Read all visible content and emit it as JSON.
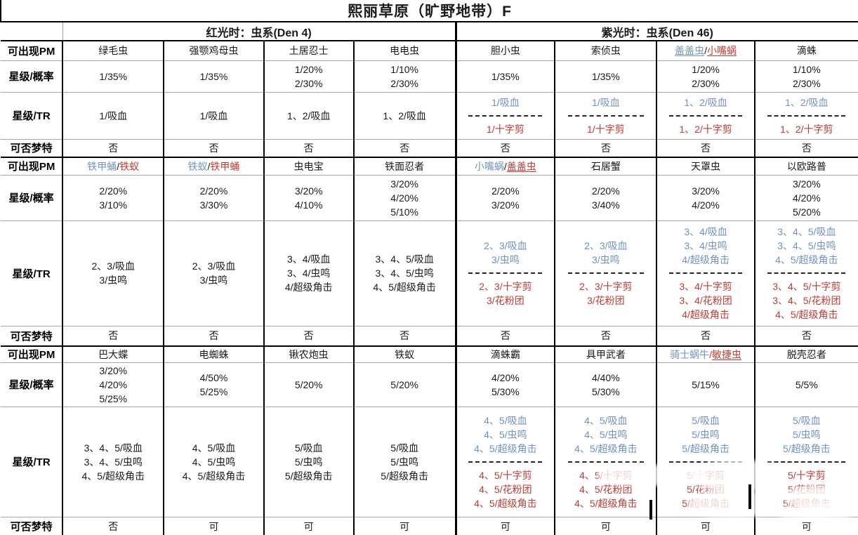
{
  "title": "熙丽草原（旷野地带）F",
  "colors": {
    "blue_text": "#6f93c4",
    "red_text": "#c33b32"
  },
  "groups": [
    {
      "label": "红光时：虫系(Den 4)"
    },
    {
      "label": "紫光时：虫系(Den 46)"
    }
  ],
  "row_labels": {
    "pm": "可出现PM",
    "prob": "星级/概率",
    "tr": "星级/TR",
    "dream": "可否梦特"
  },
  "blocks": [
    {
      "cols": [
        {
          "name": [
            {
              "t": "绿毛虫",
              "c": "k"
            }
          ],
          "prob": [
            "1/35%"
          ],
          "tr": {
            "black": [
              "1/吸血"
            ]
          },
          "dream": "否"
        },
        {
          "name": [
            {
              "t": "强颚鸡母虫",
              "c": "k"
            }
          ],
          "prob": [
            "1/35%"
          ],
          "tr": {
            "black": [
              "1/吸血"
            ]
          },
          "dream": "否"
        },
        {
          "name": [
            {
              "t": "土居忍士",
              "c": "k"
            }
          ],
          "prob": [
            "1/20%",
            "2/30%"
          ],
          "tr": {
            "black": [
              "1、2/吸血"
            ]
          },
          "dream": "否"
        },
        {
          "name": [
            {
              "t": "电电虫",
              "c": "k"
            }
          ],
          "prob": [
            "1/10%",
            "2/30%"
          ],
          "tr": {
            "black": [
              "1、2/吸血"
            ]
          },
          "dream": "否"
        },
        {
          "name": [
            {
              "t": "胆小虫",
              "c": "k"
            }
          ],
          "prob": [
            "1/35%"
          ],
          "tr": {
            "blue": [
              "1/吸血"
            ],
            "red": [
              "1/十字剪"
            ]
          },
          "dream": "否"
        },
        {
          "name": [
            {
              "t": "索侦虫",
              "c": "k"
            }
          ],
          "prob": [
            "1/35%"
          ],
          "tr": {
            "blue": [
              "1/吸血"
            ],
            "red": [
              "1/十字剪"
            ]
          },
          "dream": "否"
        },
        {
          "name": [
            {
              "t": "盖盖虫",
              "c": "b",
              "u": true
            },
            {
              "t": "/",
              "c": "k"
            },
            {
              "t": "小嘴蜗",
              "c": "r",
              "u": true
            }
          ],
          "prob": [
            "1/20%",
            "2/30%"
          ],
          "tr": {
            "blue": [
              "1、2/吸血"
            ],
            "red": [
              "1、2/十字剪"
            ]
          },
          "dream": "否"
        },
        {
          "name": [
            {
              "t": "滴蛛",
              "c": "k"
            }
          ],
          "prob": [
            "1/10%",
            "2/30%"
          ],
          "tr": {
            "blue": [
              "1、2/吸血"
            ],
            "red": [
              "1、2/十字剪"
            ]
          },
          "dream": "否"
        }
      ]
    },
    {
      "cols": [
        {
          "name": [
            {
              "t": "铁甲蛹",
              "c": "b"
            },
            {
              "t": "/",
              "c": "k"
            },
            {
              "t": "铁蚁",
              "c": "r"
            }
          ],
          "prob": [
            "2/20%",
            "3/10%"
          ],
          "tr": {
            "black": [
              "2、3/吸血",
              "3/虫鸣"
            ]
          },
          "dream": "否"
        },
        {
          "name": [
            {
              "t": "铁蚁",
              "c": "b"
            },
            {
              "t": "/",
              "c": "k"
            },
            {
              "t": "铁甲蛹",
              "c": "r"
            }
          ],
          "prob": [
            "2/20%",
            "3/30%"
          ],
          "tr": {
            "black": [
              "2、3/吸血",
              "3/虫鸣"
            ]
          },
          "dream": "否"
        },
        {
          "name": [
            {
              "t": "虫电宝",
              "c": "k"
            }
          ],
          "prob": [
            "3/20%",
            "4/10%"
          ],
          "tr": {
            "black": [
              "3、4/吸血",
              "3、4/虫鸣",
              "4/超级角击"
            ]
          },
          "dream": "否"
        },
        {
          "name": [
            {
              "t": "铁面忍者",
              "c": "k"
            }
          ],
          "prob": [
            "3/20%",
            "4/20%",
            "5/10%"
          ],
          "tr": {
            "black": [
              "3、4、5/吸血",
              "3、4、5/虫鸣",
              "4、5/超级角击"
            ]
          },
          "dream": "否"
        },
        {
          "name": [
            {
              "t": "小嘴蜗",
              "c": "b"
            },
            {
              "t": "/",
              "c": "k"
            },
            {
              "t": "盖盖虫",
              "c": "r",
              "u": true
            }
          ],
          "prob": [
            "2/20%",
            "3/20%"
          ],
          "tr": {
            "blue": [
              "2、3/吸血",
              "3/虫鸣"
            ],
            "red": [
              "2、3/十字剪",
              "3/花粉团"
            ]
          },
          "dream": "否"
        },
        {
          "name": [
            {
              "t": "石居蟹",
              "c": "k"
            }
          ],
          "prob": [
            "2/20%",
            "3/40%"
          ],
          "tr": {
            "blue": [
              "2、3/吸血",
              "3/虫鸣"
            ],
            "red": [
              "2、3/十字剪",
              "3/花粉团"
            ]
          },
          "dream": "否"
        },
        {
          "name": [
            {
              "t": "天罩虫",
              "c": "k"
            }
          ],
          "prob": [
            "3/20%",
            "4/20%"
          ],
          "tr": {
            "blue": [
              "3、4/吸血",
              "3、4/虫鸣",
              "4/超级角击"
            ],
            "red": [
              "3、4/十字剪",
              "3、4/花粉团",
              "4/超级角击"
            ]
          },
          "dream": "否"
        },
        {
          "name": [
            {
              "t": "以欧路普",
              "c": "k"
            }
          ],
          "prob": [
            "3/20%",
            "4/20%",
            "5/20%"
          ],
          "tr": {
            "blue": [
              "3、4、5/吸血",
              "3、4、5/虫鸣",
              "4、5/超级角击"
            ],
            "red": [
              "3、4、5/十字剪",
              "3、4、5/花粉团",
              "4、5/超级角击"
            ]
          },
          "dream": "否"
        }
      ]
    },
    {
      "cols": [
        {
          "name": [
            {
              "t": "巴大蝶",
              "c": "k"
            }
          ],
          "prob": [
            "3/20%",
            "4/20%",
            "5/25%"
          ],
          "tr": {
            "black": [
              "3、4、5/吸血",
              "3、4、5/虫鸣",
              "4、5/超级角击"
            ]
          },
          "dream": "否"
        },
        {
          "name": [
            {
              "t": "电蜘蛛",
              "c": "k"
            }
          ],
          "prob": [
            "4/50%",
            "5/25%"
          ],
          "tr": {
            "black": [
              "4、5/吸血",
              "4、5/虫鸣",
              "4、5/超级角击"
            ]
          },
          "dream": "可"
        },
        {
          "name": [
            {
              "t": "锹农炮虫",
              "c": "k"
            }
          ],
          "prob": [
            "5/20%"
          ],
          "tr": {
            "black": [
              "5/吸血",
              "5/虫鸣",
              "5/超级角击"
            ]
          },
          "dream": "可"
        },
        {
          "name": [
            {
              "t": "铁蚁",
              "c": "k"
            }
          ],
          "prob": [
            "5/20%"
          ],
          "tr": {
            "black": [
              "5/吸血",
              "5/虫鸣",
              "5/超级角击"
            ]
          },
          "dream": "可"
        },
        {
          "name": [
            {
              "t": "滴蛛霸",
              "c": "k"
            }
          ],
          "prob": [
            "4/20%",
            "5/30%"
          ],
          "tr": {
            "blue": [
              "4、5/吸血",
              "4、5/虫鸣",
              "4、5/超级角击"
            ],
            "red": [
              "4、5/十字剪",
              "4、5/花粉团",
              "4、5/超级角击"
            ]
          },
          "dream": "可"
        },
        {
          "name": [
            {
              "t": "具甲武者",
              "c": "k"
            }
          ],
          "prob": [
            "4/40%",
            "5/30%"
          ],
          "tr": {
            "blue": [
              "4、5/吸血",
              "4、5/虫鸣",
              "4、5/超级角击"
            ],
            "red": [
              "4、5/十字剪",
              "4、5/花粉团",
              "4、5/超级角击"
            ]
          },
          "dream": "可"
        },
        {
          "name": [
            {
              "t": "骑士蜗牛",
              "c": "b"
            },
            {
              "t": "/",
              "c": "r"
            },
            {
              "t": "敏捷虫",
              "c": "r",
              "u": true
            }
          ],
          "prob": [
            "5/15%"
          ],
          "tr": {
            "blue": [
              "5/吸血",
              "5/虫鸣",
              "5/超级角击"
            ],
            "red": [
              "5/十字剪",
              "5/花粉团",
              "5/超级角击"
            ]
          },
          "dream": "可"
        },
        {
          "name": [
            {
              "t": "脱壳忍者",
              "c": "k"
            }
          ],
          "prob": [
            "5/5%"
          ],
          "tr": {
            "blue": [
              "5/吸血",
              "5/虫鸣",
              "5/超级角击"
            ],
            "red": [
              "5/十字剪",
              "5/花粉团",
              "5/超级角击"
            ]
          },
          "dream": "可"
        }
      ]
    }
  ]
}
